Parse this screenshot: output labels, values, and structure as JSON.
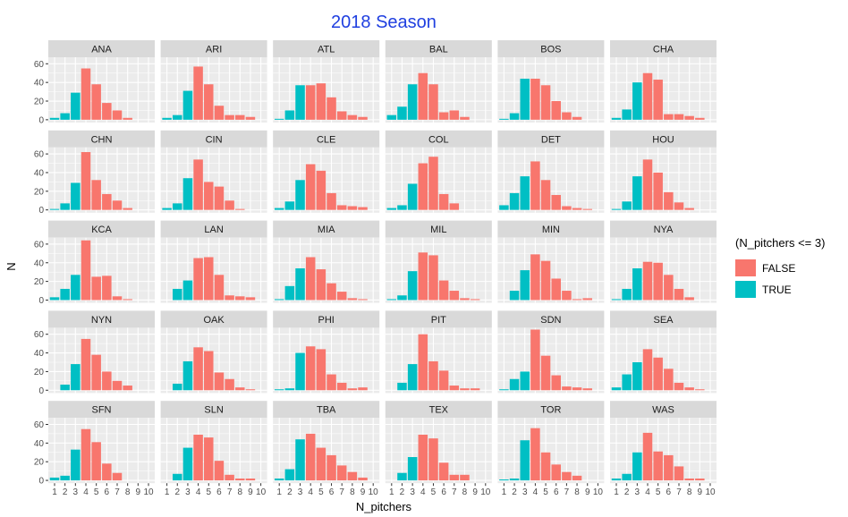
{
  "title": "2018 Season",
  "colors": {
    "title": "#1f3fe0",
    "false_fill": "#f8766d",
    "true_fill": "#00bfc4",
    "panel_bg": "#ebebeb",
    "strip_bg": "#d9d9d9",
    "grid": "#ffffff"
  },
  "chart_data": {
    "type": "bar",
    "layout": "facet_wrap",
    "ncol": 6,
    "xlabel": "N_pitchers",
    "ylabel": "N",
    "x": [
      1,
      2,
      3,
      4,
      5,
      6,
      7,
      8,
      9,
      10
    ],
    "x_tick_labels": [
      "1",
      "2",
      "3",
      "4",
      "5",
      "6",
      "7",
      "8",
      "9",
      "10"
    ],
    "y_ticks": [
      0,
      20,
      40,
      60
    ],
    "ylim": [
      -3,
      67
    ],
    "xlim": [
      0.4,
      10.6
    ],
    "grid": true,
    "legend": {
      "title": "(N_pitchers <= 3)",
      "position": "right",
      "entries": [
        {
          "label": "FALSE",
          "color": "#f8766d"
        },
        {
          "label": "TRUE",
          "color": "#00bfc4"
        }
      ]
    },
    "fill_rule": "TRUE when N_pitchers <= 3",
    "panels": [
      {
        "team": "ANA",
        "values": [
          2,
          7,
          29,
          55,
          38,
          18,
          10,
          2,
          0,
          0
        ]
      },
      {
        "team": "ARI",
        "values": [
          2,
          5,
          31,
          57,
          38,
          15,
          5,
          5,
          3,
          0
        ]
      },
      {
        "team": "ATL",
        "values": [
          1,
          10,
          37,
          37,
          39,
          24,
          9,
          5,
          3,
          0
        ]
      },
      {
        "team": "BAL",
        "values": [
          5,
          14,
          38,
          50,
          38,
          8,
          10,
          3,
          0,
          0
        ]
      },
      {
        "team": "BOS",
        "values": [
          1,
          7,
          44,
          44,
          37,
          20,
          8,
          3,
          0,
          0
        ]
      },
      {
        "team": "CHA",
        "values": [
          2,
          11,
          40,
          50,
          43,
          6,
          6,
          4,
          2,
          0
        ]
      },
      {
        "team": "CHN",
        "values": [
          1,
          7,
          29,
          62,
          32,
          17,
          10,
          2,
          0,
          0
        ]
      },
      {
        "team": "CIN",
        "values": [
          2,
          7,
          34,
          54,
          30,
          25,
          10,
          1,
          0,
          0
        ]
      },
      {
        "team": "CLE",
        "values": [
          2,
          9,
          32,
          49,
          42,
          18,
          5,
          4,
          3,
          0
        ]
      },
      {
        "team": "COL",
        "values": [
          2,
          5,
          28,
          50,
          57,
          17,
          7,
          0,
          0,
          0
        ]
      },
      {
        "team": "DET",
        "values": [
          5,
          18,
          36,
          52,
          32,
          16,
          4,
          2,
          1,
          0
        ]
      },
      {
        "team": "HOU",
        "values": [
          1,
          9,
          36,
          54,
          40,
          19,
          8,
          2,
          0,
          0
        ]
      },
      {
        "team": "KCA",
        "values": [
          3,
          12,
          27,
          64,
          25,
          26,
          4,
          1,
          0,
          0
        ]
      },
      {
        "team": "LAN",
        "values": [
          0,
          12,
          21,
          45,
          46,
          27,
          5,
          4,
          3,
          0
        ]
      },
      {
        "team": "MIA",
        "values": [
          1,
          15,
          34,
          46,
          33,
          18,
          9,
          2,
          1,
          0
        ]
      },
      {
        "team": "MIL",
        "values": [
          1,
          5,
          31,
          51,
          48,
          21,
          10,
          2,
          1,
          0
        ]
      },
      {
        "team": "MIN",
        "values": [
          0,
          10,
          32,
          49,
          42,
          23,
          10,
          1,
          2,
          0
        ]
      },
      {
        "team": "NYA",
        "values": [
          1,
          12,
          34,
          41,
          40,
          27,
          12,
          3,
          0,
          0
        ]
      },
      {
        "team": "NYN",
        "values": [
          0,
          6,
          28,
          55,
          38,
          20,
          10,
          5,
          0,
          0
        ]
      },
      {
        "team": "OAK",
        "values": [
          0,
          7,
          31,
          46,
          42,
          19,
          12,
          3,
          1,
          0
        ]
      },
      {
        "team": "PHI",
        "values": [
          1,
          2,
          40,
          47,
          44,
          17,
          8,
          2,
          3,
          0
        ]
      },
      {
        "team": "PIT",
        "values": [
          0,
          8,
          28,
          60,
          31,
          21,
          5,
          2,
          2,
          0
        ]
      },
      {
        "team": "SDN",
        "values": [
          1,
          12,
          20,
          65,
          37,
          16,
          4,
          3,
          2,
          0
        ]
      },
      {
        "team": "SEA",
        "values": [
          3,
          17,
          30,
          44,
          35,
          23,
          8,
          3,
          1,
          0
        ]
      },
      {
        "team": "SFN",
        "values": [
          3,
          5,
          33,
          55,
          41,
          18,
          8,
          0,
          0,
          0
        ]
      },
      {
        "team": "SLN",
        "values": [
          0,
          7,
          35,
          49,
          46,
          21,
          6,
          2,
          2,
          0
        ]
      },
      {
        "team": "TBA",
        "values": [
          2,
          12,
          44,
          50,
          35,
          27,
          16,
          9,
          3,
          0
        ]
      },
      {
        "team": "TEX",
        "values": [
          0,
          8,
          25,
          49,
          45,
          19,
          6,
          6,
          0,
          0
        ]
      },
      {
        "team": "TOR",
        "values": [
          1,
          2,
          43,
          56,
          30,
          17,
          9,
          5,
          0,
          0
        ]
      },
      {
        "team": "WAS",
        "values": [
          2,
          7,
          30,
          51,
          31,
          27,
          15,
          2,
          2,
          0
        ]
      }
    ]
  }
}
